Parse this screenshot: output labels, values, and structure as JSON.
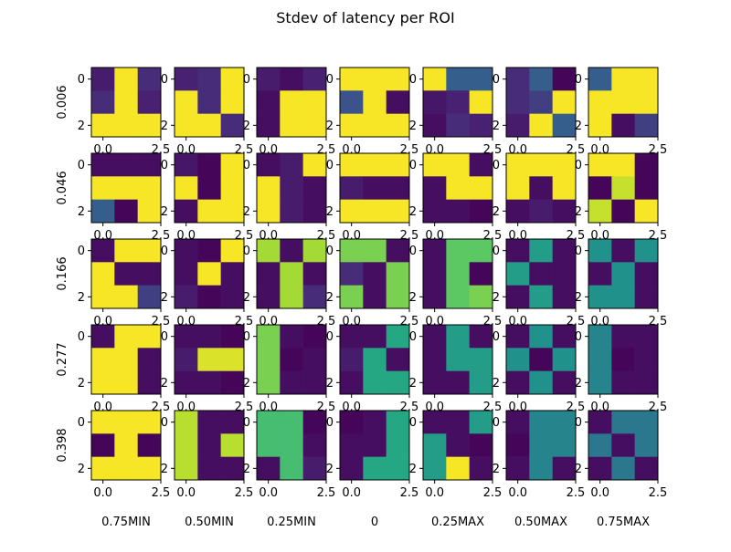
{
  "chart_data": {
    "type": "heatmap",
    "title": "Stdev of latency per ROI",
    "colormap": "viridis",
    "value_range": [
      0,
      1
    ],
    "rows": [
      "0.006",
      "0.046",
      "0.166",
      "0.277",
      "0.398"
    ],
    "columns": [
      "0.75MIN",
      "0.50MIN",
      "0.25MIN",
      "0",
      "0.25MAX",
      "0.50MAX",
      "0.75MAX"
    ],
    "x_ticks": [
      "0.0",
      "2.5"
    ],
    "y_ticks": [
      "0",
      "2"
    ],
    "cell_grid": [
      3,
      3
    ],
    "grids": [
      [
        [
          [
            0.1,
            0.99,
            0.15
          ],
          [
            0.15,
            0.99,
            0.12
          ],
          [
            0.99,
            0.99,
            0.99
          ]
        ],
        [
          [
            0.12,
            0.15,
            0.99
          ],
          [
            0.99,
            0.15,
            0.99
          ],
          [
            0.99,
            0.99,
            0.15
          ]
        ],
        [
          [
            0.1,
            0.05,
            0.12
          ],
          [
            0.05,
            0.99,
            0.99
          ],
          [
            0.05,
            0.99,
            0.99
          ]
        ],
        [
          [
            0.99,
            0.99,
            0.99
          ],
          [
            0.25,
            0.99,
            0.05
          ],
          [
            0.99,
            0.99,
            0.99
          ]
        ],
        [
          [
            0.99,
            0.3,
            0.3
          ],
          [
            0.08,
            0.12,
            0.99
          ],
          [
            0.05,
            0.15,
            0.12
          ]
        ],
        [
          [
            0.15,
            0.3,
            0.02
          ],
          [
            0.15,
            0.2,
            0.99
          ],
          [
            0.1,
            0.99,
            0.3
          ]
        ],
        [
          [
            0.3,
            0.99,
            0.99
          ],
          [
            0.99,
            0.99,
            0.99
          ],
          [
            0.99,
            0.05,
            0.2
          ]
        ]
      ],
      [
        [
          [
            0.05,
            0.05,
            0.05
          ],
          [
            0.99,
            0.99,
            0.99
          ],
          [
            0.3,
            0.02,
            0.99
          ]
        ],
        [
          [
            0.08,
            0.02,
            0.99
          ],
          [
            0.99,
            0.02,
            0.99
          ],
          [
            0.05,
            0.99,
            0.99
          ]
        ],
        [
          [
            0.05,
            0.1,
            0.99
          ],
          [
            0.99,
            0.1,
            0.05
          ],
          [
            0.99,
            0.1,
            0.05
          ]
        ],
        [
          [
            0.99,
            0.99,
            0.99
          ],
          [
            0.1,
            0.05,
            0.05
          ],
          [
            0.99,
            0.99,
            0.99
          ]
        ],
        [
          [
            0.99,
            0.99,
            0.05
          ],
          [
            0.05,
            0.99,
            0.99
          ],
          [
            0.05,
            0.05,
            0.02
          ]
        ],
        [
          [
            0.99,
            0.99,
            0.99
          ],
          [
            0.99,
            0.05,
            0.99
          ],
          [
            0.05,
            0.1,
            0.05
          ]
        ],
        [
          [
            0.99,
            0.99,
            0.02
          ],
          [
            0.02,
            0.92,
            0.02
          ],
          [
            0.92,
            0.02,
            0.99
          ]
        ]
      ],
      [
        [
          [
            0.05,
            0.99,
            0.99
          ],
          [
            0.99,
            0.05,
            0.05
          ],
          [
            0.99,
            0.99,
            0.2
          ]
        ],
        [
          [
            0.05,
            0.02,
            0.99
          ],
          [
            0.05,
            0.99,
            0.05
          ],
          [
            0.1,
            0.02,
            0.05
          ]
        ],
        [
          [
            0.87,
            0.05,
            0.87
          ],
          [
            0.05,
            0.87,
            0.05
          ],
          [
            0.05,
            0.87,
            0.15
          ]
        ],
        [
          [
            0.8,
            0.8,
            0.05
          ],
          [
            0.15,
            0.05,
            0.8
          ],
          [
            0.8,
            0.05,
            0.8
          ]
        ],
        [
          [
            0.05,
            0.75,
            0.75
          ],
          [
            0.05,
            0.75,
            0.02
          ],
          [
            0.05,
            0.75,
            0.8
          ]
        ],
        [
          [
            0.05,
            0.55,
            0.05
          ],
          [
            0.55,
            0.05,
            0.05
          ],
          [
            0.05,
            0.55,
            0.05
          ]
        ],
        [
          [
            0.5,
            0.05,
            0.5
          ],
          [
            0.05,
            0.5,
            0.05
          ],
          [
            0.5,
            0.5,
            0.05
          ]
        ]
      ],
      [
        [
          [
            0.05,
            0.99,
            0.99
          ],
          [
            0.99,
            0.99,
            0.05
          ],
          [
            0.99,
            0.99,
            0.05
          ]
        ],
        [
          [
            0.05,
            0.05,
            0.02
          ],
          [
            0.1,
            0.95,
            0.95
          ],
          [
            0.05,
            0.05,
            0.02
          ]
        ],
        [
          [
            0.8,
            0.05,
            0.02
          ],
          [
            0.8,
            0.02,
            0.05
          ],
          [
            0.8,
            0.05,
            0.05
          ]
        ],
        [
          [
            0.05,
            0.05,
            0.6
          ],
          [
            0.1,
            0.6,
            0.05
          ],
          [
            0.05,
            0.6,
            0.6
          ]
        ],
        [
          [
            0.05,
            0.55,
            0.05
          ],
          [
            0.05,
            0.55,
            0.55
          ],
          [
            0.05,
            0.05,
            0.55
          ]
        ],
        [
          [
            0.05,
            0.5,
            0.05
          ],
          [
            0.5,
            0.02,
            0.5
          ],
          [
            0.05,
            0.5,
            0.05
          ]
        ],
        [
          [
            0.45,
            0.05,
            0.05
          ],
          [
            0.45,
            0.02,
            0.05
          ],
          [
            0.45,
            0.05,
            0.05
          ]
        ]
      ],
      [
        [
          [
            0.99,
            0.99,
            0.99
          ],
          [
            0.02,
            0.99,
            0.02
          ],
          [
            0.99,
            0.99,
            0.99
          ]
        ],
        [
          [
            0.9,
            0.05,
            0.05
          ],
          [
            0.9,
            0.05,
            0.9
          ],
          [
            0.9,
            0.05,
            0.05
          ]
        ],
        [
          [
            0.7,
            0.7,
            0.02
          ],
          [
            0.7,
            0.7,
            0.05
          ],
          [
            0.05,
            0.7,
            0.1
          ]
        ],
        [
          [
            0.02,
            0.05,
            0.6
          ],
          [
            0.05,
            0.05,
            0.6
          ],
          [
            0.05,
            0.6,
            0.6
          ]
        ],
        [
          [
            0.05,
            0.05,
            0.55
          ],
          [
            0.55,
            0.05,
            0.02
          ],
          [
            0.55,
            0.99,
            0.05
          ]
        ],
        [
          [
            0.05,
            0.45,
            0.45
          ],
          [
            0.02,
            0.45,
            0.45
          ],
          [
            0.05,
            0.45,
            0.05
          ]
        ],
        [
          [
            0.05,
            0.4,
            0.4
          ],
          [
            0.4,
            0.05,
            0.4
          ],
          [
            0.05,
            0.4,
            0.05
          ]
        ]
      ]
    ]
  }
}
